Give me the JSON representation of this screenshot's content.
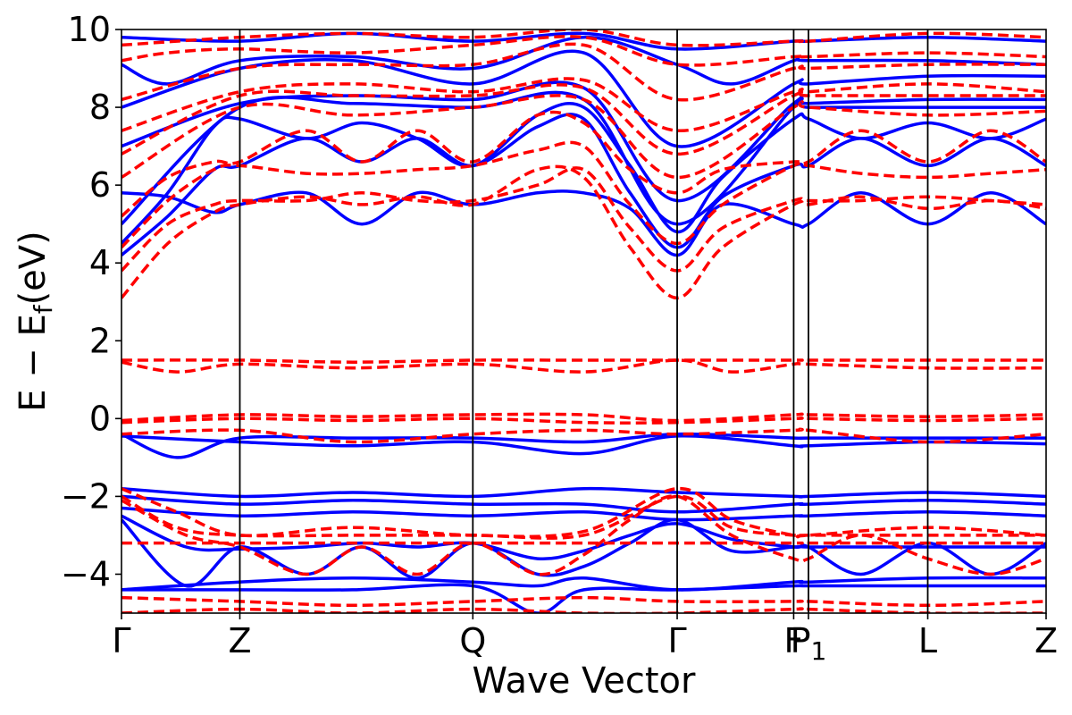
{
  "chart_data": {
    "type": "line",
    "xlabel": "Wave Vector",
    "ylabel": "E − E",
    "ylabel_subscript": "f",
    "ylabel_unit": "(eV)",
    "ylim": [
      -5,
      10
    ],
    "xlim": [
      0,
      1
    ],
    "grid": false,
    "yticks": [
      -4,
      -2,
      0,
      2,
      4,
      6,
      8,
      10
    ],
    "ytick_labels": [
      "−4",
      "−2",
      "0",
      "2",
      "4",
      "6",
      "8",
      "10"
    ],
    "kpoints": [
      {
        "label": "Γ",
        "x": 0.0
      },
      {
        "label": "Z",
        "x": 0.128
      },
      {
        "label": "Q",
        "x": 0.38
      },
      {
        "label": "Γ",
        "x": 0.601
      },
      {
        "label": "F",
        "x": 0.727
      },
      {
        "label": "P",
        "sub": "1",
        "x": 0.743
      },
      {
        "label": "L",
        "x": 0.872
      },
      {
        "label": "Z",
        "x": 1.0
      }
    ],
    "series": [
      {
        "style": "solid",
        "color": "#0000ff"
      },
      {
        "style": "dashed",
        "color": "#ff0000"
      }
    ],
    "solid_bands": [
      {
        "x": [
          0,
          0.06,
          0.128,
          0.25,
          0.38,
          0.5,
          0.601,
          0.727,
          0.743,
          0.872,
          1.0
        ],
        "y": [
          -0.4,
          -1.0,
          -0.5,
          -0.5,
          -0.5,
          -0.6,
          -0.4,
          -0.5,
          -0.5,
          -0.5,
          -0.5
        ]
      },
      {
        "x": [
          0,
          0.128,
          0.25,
          0.38,
          0.5,
          0.601,
          0.727,
          0.743,
          0.872,
          1.0
        ],
        "y": [
          -0.45,
          -0.6,
          -0.7,
          -0.6,
          -0.9,
          -0.45,
          -0.7,
          -0.7,
          -0.6,
          -0.65
        ]
      },
      {
        "x": [
          0,
          0.128,
          0.25,
          0.38,
          0.5,
          0.601,
          0.727,
          0.743,
          0.872,
          1.0
        ],
        "y": [
          -1.8,
          -2.0,
          -1.9,
          -2.0,
          -1.8,
          -1.9,
          -2.0,
          -2.0,
          -1.9,
          -2.0
        ]
      },
      {
        "x": [
          0,
          0.128,
          0.25,
          0.38,
          0.5,
          0.601,
          0.727,
          0.743,
          0.872,
          1.0
        ],
        "y": [
          -2.0,
          -2.2,
          -2.1,
          -2.2,
          -2.2,
          -2.4,
          -2.2,
          -2.2,
          -2.1,
          -2.2
        ]
      },
      {
        "x": [
          0,
          0.128,
          0.25,
          0.38,
          0.5,
          0.601,
          0.727,
          0.743,
          0.872,
          1.0
        ],
        "y": [
          -2.3,
          -2.5,
          -2.4,
          -2.5,
          -2.4,
          -2.6,
          -2.5,
          -2.5,
          -2.4,
          -2.5
        ]
      },
      {
        "x": [
          0,
          0.07,
          0.128,
          0.2,
          0.26,
          0.32,
          0.38,
          0.45,
          0.5,
          0.55,
          0.601,
          0.66,
          0.727,
          0.743,
          0.8,
          0.872,
          0.94,
          1.0
        ],
        "y": [
          -2.5,
          -3.3,
          -3.35,
          -3.3,
          -3.2,
          -3.3,
          -3.2,
          -3.6,
          -3.4,
          -3.0,
          -2.7,
          -3.1,
          -3.3,
          -3.3,
          -4.0,
          -3.2,
          -4.0,
          -3.2
        ]
      },
      {
        "x": [
          0,
          0.07,
          0.128,
          0.2,
          0.26,
          0.32,
          0.38,
          0.45,
          0.5,
          0.55,
          0.601,
          0.66,
          0.727,
          0.743,
          0.8,
          0.872,
          0.94,
          1.0
        ],
        "y": [
          -2.6,
          -4.3,
          -3.3,
          -4.0,
          -3.3,
          -4.1,
          -3.2,
          -4.0,
          -3.8,
          -3.2,
          -2.6,
          -3.4,
          -3.3,
          -3.3,
          -3.3,
          -3.3,
          -3.3,
          -3.3
        ]
      },
      {
        "x": [
          0,
          0.128,
          0.25,
          0.38,
          0.45,
          0.5,
          0.601,
          0.727,
          0.743,
          0.872,
          1.0
        ],
        "y": [
          -4.4,
          -4.2,
          -4.1,
          -4.2,
          -4.3,
          -4.1,
          -4.4,
          -4.2,
          -4.2,
          -4.1,
          -4.1
        ]
      },
      {
        "x": [
          0,
          0.128,
          0.25,
          0.38,
          0.45,
          0.5,
          0.601,
          0.727,
          0.743,
          0.872,
          1.0
        ],
        "y": [
          -4.4,
          -4.4,
          -4.4,
          -4.3,
          -5.0,
          -4.4,
          -4.4,
          -4.3,
          -4.3,
          -4.3,
          -4.3
        ]
      },
      {
        "x": [
          0,
          0.05,
          0.1,
          0.128,
          0.2,
          0.26,
          0.32,
          0.38,
          0.45,
          0.5,
          0.55,
          0.601,
          0.65,
          0.727,
          0.743,
          0.8,
          0.872,
          0.94,
          1.0
        ],
        "y": [
          5.8,
          5.7,
          5.3,
          5.5,
          5.8,
          5.0,
          5.8,
          5.5,
          5.8,
          5.8,
          5.4,
          4.2,
          5.5,
          5.0,
          5.0,
          5.8,
          5.0,
          5.8,
          5.0
        ]
      },
      {
        "x": [
          0,
          0.05,
          0.1,
          0.128,
          0.2,
          0.26,
          0.32,
          0.38,
          0.45,
          0.5,
          0.55,
          0.601,
          0.65,
          0.727,
          0.743,
          0.8,
          0.872,
          0.94,
          1.0
        ],
        "y": [
          4.2,
          5.2,
          6.4,
          6.5,
          7.2,
          6.6,
          7.2,
          6.5,
          7.5,
          7.7,
          5.8,
          4.4,
          5.7,
          6.5,
          6.5,
          7.2,
          6.5,
          7.2,
          6.5
        ]
      },
      {
        "x": [
          0,
          0.05,
          0.1,
          0.128,
          0.2,
          0.26,
          0.32,
          0.38,
          0.45,
          0.5,
          0.55,
          0.601,
          0.65,
          0.727,
          0.743,
          0.8,
          0.872,
          0.94,
          1.0
        ],
        "y": [
          4.5,
          5.8,
          7.5,
          7.7,
          7.2,
          7.6,
          7.2,
          6.5,
          7.8,
          8.0,
          6.5,
          4.8,
          6.2,
          7.7,
          7.7,
          7.2,
          7.6,
          7.2,
          7.7
        ]
      },
      {
        "x": [
          0,
          0.128,
          0.25,
          0.38,
          0.5,
          0.601,
          0.727,
          0.743,
          0.872,
          1.0
        ],
        "y": [
          5.0,
          8.0,
          8.1,
          8.0,
          8.2,
          5.0,
          8.0,
          8.0,
          8.0,
          8.0
        ]
      },
      {
        "x": [
          0,
          0.128,
          0.25,
          0.38,
          0.5,
          0.601,
          0.727,
          0.743,
          0.872,
          1.0
        ],
        "y": [
          7.0,
          8.1,
          8.3,
          8.2,
          8.5,
          5.6,
          8.1,
          8.1,
          8.2,
          8.2
        ]
      },
      {
        "x": [
          0,
          0.128,
          0.25,
          0.38,
          0.5,
          0.601,
          0.727,
          0.743,
          0.872,
          1.0
        ],
        "y": [
          8.0,
          9.0,
          9.2,
          8.6,
          9.4,
          7.0,
          8.6,
          8.6,
          8.8,
          8.8
        ]
      },
      {
        "x": [
          0,
          0.05,
          0.128,
          0.25,
          0.38,
          0.5,
          0.601,
          0.66,
          0.727,
          0.743,
          0.872,
          1.0
        ],
        "y": [
          9.1,
          8.6,
          9.2,
          9.3,
          9.0,
          9.8,
          9.1,
          8.6,
          9.2,
          9.2,
          9.2,
          9.1
        ]
      },
      {
        "x": [
          0,
          0.128,
          0.25,
          0.38,
          0.5,
          0.601,
          0.727,
          0.743,
          0.872,
          1.0
        ],
        "y": [
          9.8,
          9.7,
          9.9,
          9.7,
          9.9,
          9.5,
          9.7,
          9.7,
          9.8,
          9.7
        ]
      }
    ],
    "dashed_bands": [
      {
        "x": [
          0,
          0.128,
          0.25,
          0.38,
          0.5,
          0.601,
          0.727,
          0.743,
          0.872,
          1.0
        ],
        "y": [
          1.5,
          1.5,
          1.45,
          1.5,
          1.5,
          1.5,
          1.5,
          1.5,
          1.5,
          1.5
        ]
      },
      {
        "x": [
          0,
          0.06,
          0.128,
          0.25,
          0.38,
          0.5,
          0.601,
          0.66,
          0.727,
          0.743,
          0.872,
          1.0
        ],
        "y": [
          1.45,
          1.2,
          1.4,
          1.3,
          1.4,
          1.2,
          1.5,
          1.2,
          1.4,
          1.4,
          1.3,
          1.3
        ]
      },
      {
        "x": [
          0,
          0.128,
          0.25,
          0.38,
          0.5,
          0.601,
          0.727,
          0.743,
          0.872,
          1.0
        ],
        "y": [
          -0.05,
          0.1,
          0.05,
          0.1,
          0.1,
          -0.05,
          0.1,
          0.1,
          0.05,
          0.1
        ]
      },
      {
        "x": [
          0,
          0.128,
          0.25,
          0.38,
          0.5,
          0.601,
          0.727,
          0.743,
          0.872,
          1.0
        ],
        "y": [
          -0.1,
          0.0,
          -0.05,
          0.0,
          -0.1,
          -0.1,
          0.0,
          0.0,
          -0.05,
          0.0
        ]
      },
      {
        "x": [
          0,
          0.128,
          0.25,
          0.38,
          0.5,
          0.601,
          0.727,
          0.743,
          0.872,
          1.0
        ],
        "y": [
          -0.4,
          -0.3,
          -0.6,
          -0.4,
          -0.3,
          -0.4,
          -0.3,
          -0.3,
          -0.6,
          -0.4
        ]
      },
      {
        "x": [
          0,
          0.06,
          0.128,
          0.25,
          0.38,
          0.5,
          0.601,
          0.66,
          0.727,
          0.743,
          0.872,
          1.0
        ],
        "y": [
          -1.8,
          -2.4,
          -3.0,
          -2.8,
          -3.0,
          -2.9,
          -1.8,
          -2.6,
          -3.0,
          -3.0,
          -2.8,
          -3.0
        ]
      },
      {
        "x": [
          0,
          0.06,
          0.128,
          0.25,
          0.38,
          0.5,
          0.601,
          0.66,
          0.727,
          0.743,
          0.872,
          1.0
        ],
        "y": [
          -2.0,
          -2.8,
          -3.0,
          -3.0,
          -3.0,
          -3.0,
          -2.0,
          -2.8,
          -3.0,
          -3.0,
          -3.0,
          -3.0
        ]
      },
      {
        "x": [
          0,
          0.128,
          0.25,
          0.38,
          0.5,
          0.601,
          0.727,
          0.743,
          0.872,
          1.0
        ],
        "y": [
          -3.2,
          -3.2,
          -3.2,
          -3.2,
          -3.2,
          -3.2,
          -3.2,
          -3.2,
          -3.2,
          -3.2
        ]
      },
      {
        "x": [
          0,
          0.07,
          0.128,
          0.2,
          0.26,
          0.32,
          0.38,
          0.45,
          0.5,
          0.55,
          0.601,
          0.66,
          0.727,
          0.743,
          0.8,
          0.872,
          0.94,
          1.0
        ],
        "y": [
          -2.1,
          -3.0,
          -3.3,
          -4.0,
          -3.3,
          -4.0,
          -3.2,
          -4.0,
          -3.5,
          -2.6,
          -2.0,
          -3.0,
          -3.6,
          -3.6,
          -3.0,
          -3.6,
          -4.0,
          -3.6
        ]
      },
      {
        "x": [
          0,
          0.128,
          0.25,
          0.38,
          0.5,
          0.601,
          0.727,
          0.743,
          0.872,
          1.0
        ],
        "y": [
          -4.6,
          -4.7,
          -4.8,
          -4.7,
          -4.6,
          -4.7,
          -4.7,
          -4.7,
          -4.8,
          -4.7
        ]
      },
      {
        "x": [
          0,
          0.128,
          0.25,
          0.38,
          0.5,
          0.601,
          0.727,
          0.743,
          0.872,
          1.0
        ],
        "y": [
          -5.0,
          -4.9,
          -5.0,
          -4.9,
          -5.0,
          -5.0,
          -4.9,
          -4.9,
          -5.0,
          -5.0
        ]
      },
      {
        "x": [
          0,
          0.05,
          0.1,
          0.128,
          0.2,
          0.26,
          0.32,
          0.38,
          0.45,
          0.5,
          0.55,
          0.601,
          0.65,
          0.727,
          0.743,
          0.8,
          0.872,
          0.94,
          1.0
        ],
        "y": [
          3.1,
          4.5,
          5.3,
          5.5,
          5.7,
          5.5,
          5.7,
          5.5,
          6.4,
          6.2,
          4.4,
          3.1,
          4.4,
          5.5,
          5.5,
          5.7,
          5.4,
          5.6,
          5.4
        ]
      },
      {
        "x": [
          0,
          0.05,
          0.1,
          0.128,
          0.2,
          0.26,
          0.32,
          0.38,
          0.45,
          0.5,
          0.55,
          0.601,
          0.65,
          0.727,
          0.743,
          0.8,
          0.872,
          0.94,
          1.0
        ],
        "y": [
          3.8,
          5.0,
          5.5,
          5.6,
          5.6,
          5.8,
          5.6,
          5.6,
          6.0,
          6.4,
          4.9,
          3.8,
          4.9,
          5.6,
          5.6,
          5.6,
          5.7,
          5.6,
          5.5
        ]
      },
      {
        "x": [
          0,
          0.05,
          0.1,
          0.128,
          0.2,
          0.26,
          0.32,
          0.38,
          0.45,
          0.5,
          0.55,
          0.601,
          0.65,
          0.727,
          0.743,
          0.8,
          0.872,
          0.94,
          1.0
        ],
        "y": [
          4.4,
          5.6,
          6.4,
          6.5,
          6.3,
          6.3,
          6.4,
          6.5,
          6.9,
          7.0,
          5.5,
          4.5,
          5.5,
          6.5,
          6.5,
          6.3,
          6.2,
          6.3,
          6.4
        ]
      },
      {
        "x": [
          0,
          0.05,
          0.1,
          0.128,
          0.2,
          0.26,
          0.32,
          0.38,
          0.45,
          0.5,
          0.55,
          0.601,
          0.65,
          0.727,
          0.743,
          0.8,
          0.872,
          0.94,
          1.0
        ],
        "y": [
          5.2,
          6.2,
          6.6,
          6.6,
          7.4,
          6.6,
          7.4,
          6.6,
          7.8,
          7.6,
          6.4,
          5.8,
          6.4,
          6.6,
          6.6,
          7.4,
          6.6,
          7.4,
          6.6
        ]
      },
      {
        "x": [
          0,
          0.128,
          0.25,
          0.38,
          0.5,
          0.601,
          0.727,
          0.743,
          0.872,
          1.0
        ],
        "y": [
          6.2,
          8.0,
          7.8,
          8.0,
          8.2,
          6.2,
          8.0,
          8.0,
          7.8,
          7.9
        ]
      },
      {
        "x": [
          0,
          0.128,
          0.25,
          0.38,
          0.5,
          0.601,
          0.727,
          0.743,
          0.872,
          1.0
        ],
        "y": [
          6.8,
          8.3,
          8.3,
          8.3,
          8.5,
          6.8,
          8.3,
          8.3,
          8.3,
          8.3
        ]
      },
      {
        "x": [
          0,
          0.128,
          0.25,
          0.38,
          0.5,
          0.601,
          0.727,
          0.743,
          0.872,
          1.0
        ],
        "y": [
          7.4,
          8.4,
          8.6,
          8.4,
          8.7,
          7.4,
          8.4,
          8.4,
          8.6,
          8.4
        ]
      },
      {
        "x": [
          0,
          0.128,
          0.25,
          0.38,
          0.5,
          0.601,
          0.727,
          0.743,
          0.872,
          1.0
        ],
        "y": [
          8.2,
          9.0,
          9.1,
          9.1,
          9.6,
          8.2,
          9.0,
          9.0,
          9.1,
          9.1
        ]
      },
      {
        "x": [
          0,
          0.05,
          0.128,
          0.25,
          0.38,
          0.5,
          0.601,
          0.727,
          0.743,
          0.872,
          1.0
        ],
        "y": [
          9.2,
          9.4,
          9.5,
          9.4,
          9.6,
          9.8,
          9.1,
          9.3,
          9.3,
          9.4,
          9.3
        ]
      },
      {
        "x": [
          0,
          0.128,
          0.25,
          0.38,
          0.5,
          0.601,
          0.727,
          0.743,
          0.872,
          1.0
        ],
        "y": [
          9.6,
          9.8,
          9.9,
          9.8,
          10.0,
          9.6,
          9.7,
          9.7,
          9.9,
          9.8
        ]
      }
    ]
  }
}
